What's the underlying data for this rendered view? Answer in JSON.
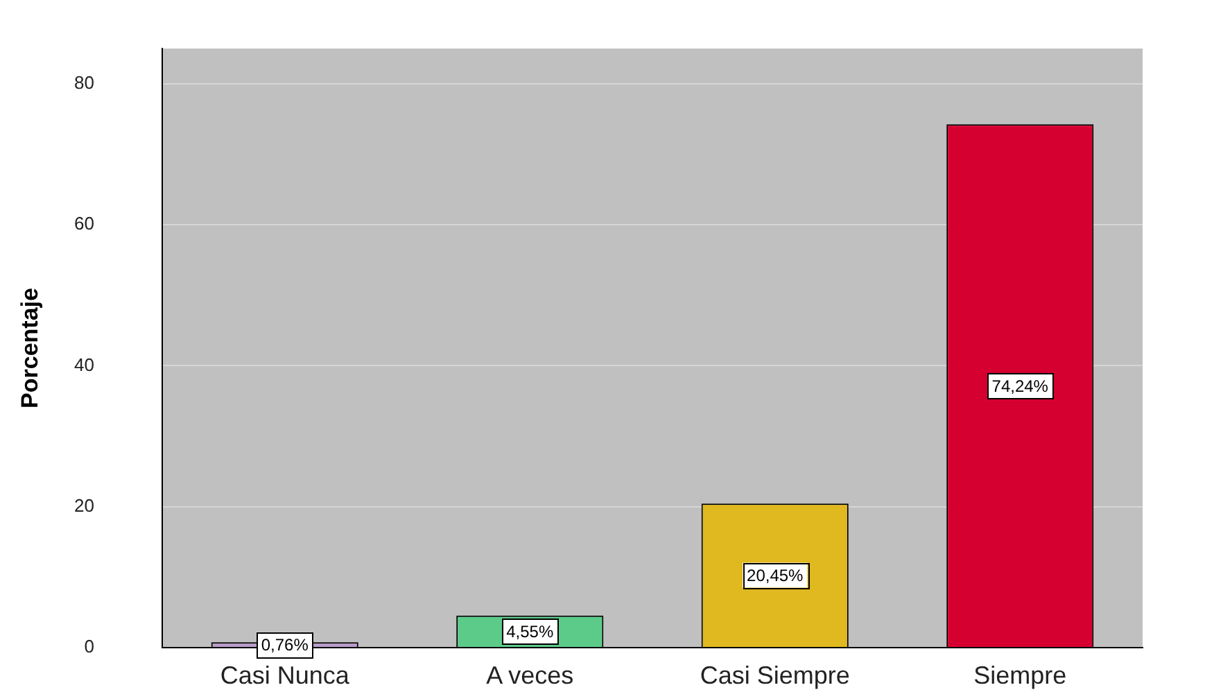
{
  "chart_data": {
    "type": "bar",
    "ylabel": "Porcentaje",
    "categories": [
      "Casi Nunca",
      "A veces",
      "Casi Siempre",
      "Siempre"
    ],
    "values": [
      0.76,
      4.55,
      20.45,
      74.24
    ],
    "colors": [
      "#b99ccb",
      "#5ccb8a",
      "#e0b820",
      "#d60030"
    ],
    "value_labels": [
      "0,76%",
      "4,55%",
      "20,45%",
      "74,24%"
    ],
    "ylim": [
      0,
      85
    ],
    "yticks": [
      0,
      20,
      40,
      60,
      80
    ],
    "grid": "y"
  }
}
